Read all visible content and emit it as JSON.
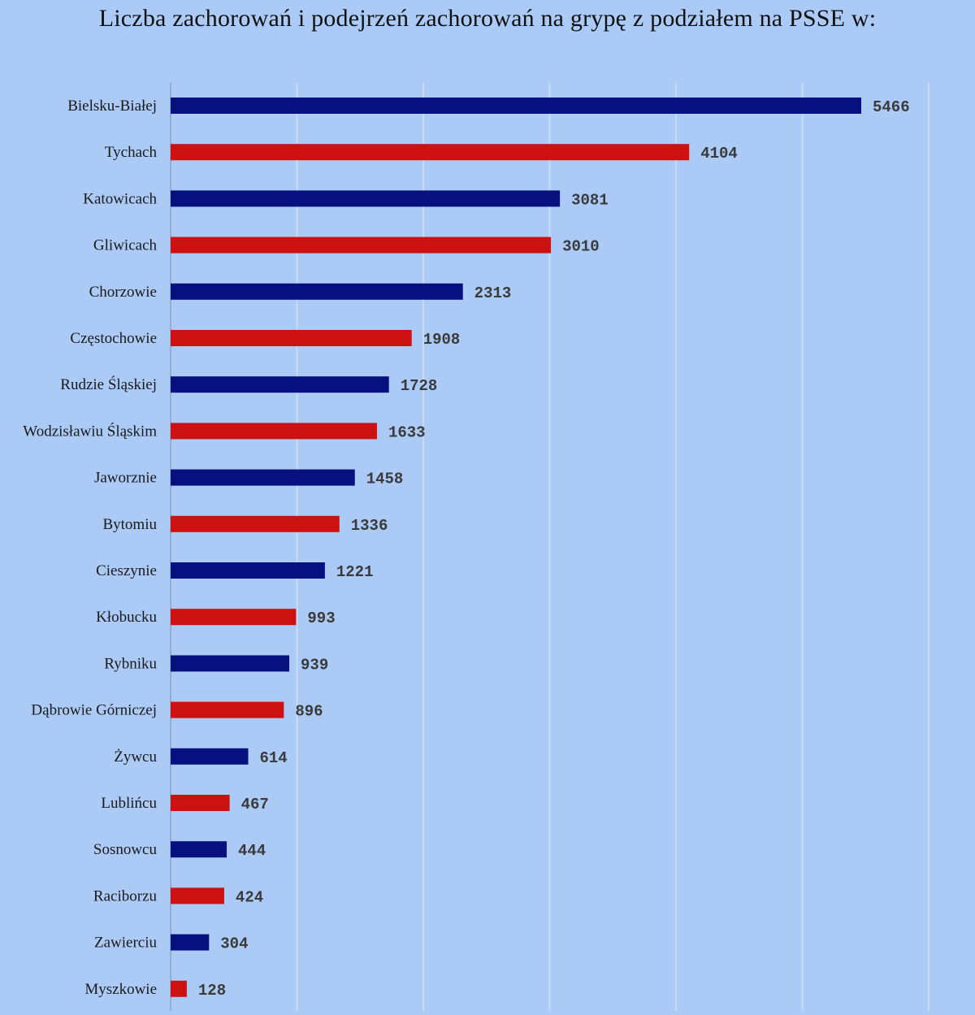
{
  "chart_data": {
    "type": "bar",
    "orientation": "horizontal",
    "title": "Liczba zachorowań i podejrzeń zachorowań na grypę z podziałem na PSSE w:",
    "categories": [
      "Bielsku-Białej",
      "Tychach",
      "Katowicach",
      "Gliwicach",
      "Chorzowie",
      "Częstochowie",
      "Rudzie Śląskiej",
      "Wodzisławiu Śląskim",
      "Jaworznie",
      "Bytomiu",
      "Cieszynie",
      "Kłobucku",
      "Rybniku",
      "Dąbrowie Górniczej",
      "Żywcu",
      "Lublińcu",
      "Sosnowcu",
      "Raciborzu",
      "Zawierciu",
      "Myszkowie"
    ],
    "values": [
      5466,
      4104,
      3081,
      3010,
      2313,
      1908,
      1728,
      1633,
      1458,
      1336,
      1221,
      993,
      939,
      896,
      614,
      467,
      444,
      424,
      304,
      128
    ],
    "xlim": [
      0,
      6000
    ],
    "grid": true,
    "legend": "none",
    "data_labels": true,
    "colors": [
      "#06107e",
      "#cc1111"
    ],
    "background": "#abcaf6"
  }
}
